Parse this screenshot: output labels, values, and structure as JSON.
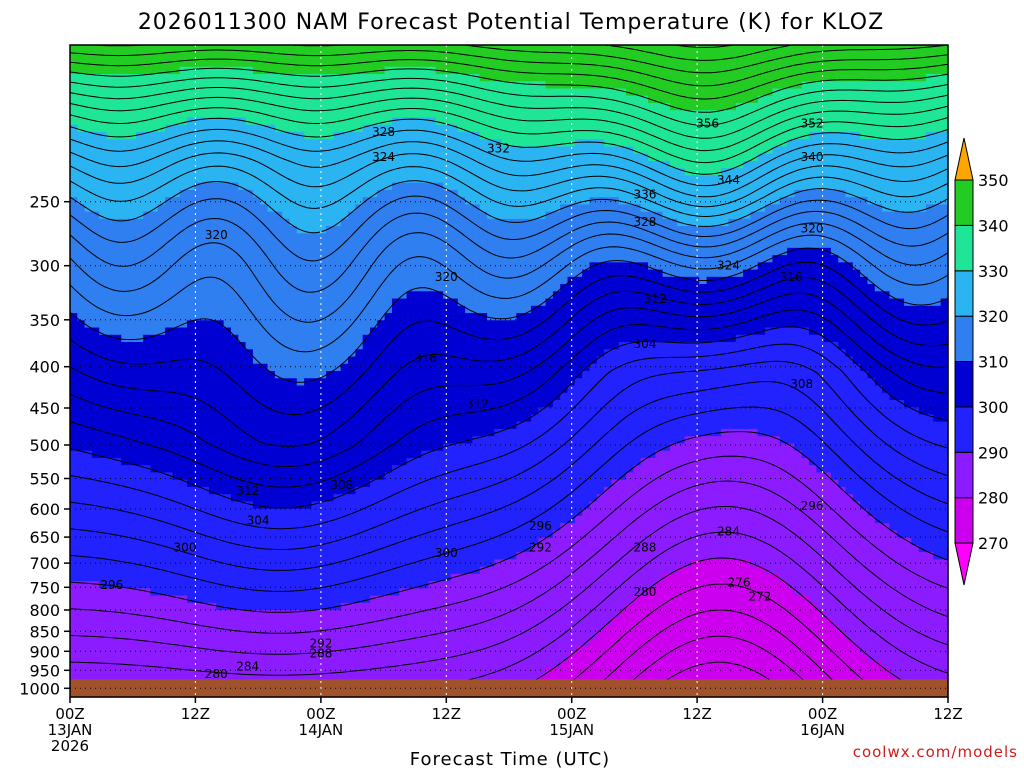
{
  "chart_data": {
    "type": "contour",
    "title": "2026011300 NAM Forecast Potential Temperature (K) for KLOZ",
    "xlabel": "Forecast Time (UTC)",
    "ylabel": "",
    "y_scale": "log-pressure",
    "y_inverted": true,
    "ylim": [
      1025,
      160
    ],
    "y_ticks": [
      250,
      300,
      350,
      400,
      450,
      500,
      550,
      600,
      650,
      700,
      750,
      800,
      850,
      900,
      950,
      1000
    ],
    "x_ticks": [
      {
        "hour": 0,
        "time": "00Z",
        "date": "13JAN",
        "year": "2026"
      },
      {
        "hour": 12,
        "time": "12Z",
        "date": "",
        "year": ""
      },
      {
        "hour": 24,
        "time": "00Z",
        "date": "14JAN",
        "year": ""
      },
      {
        "hour": 36,
        "time": "12Z",
        "date": "",
        "year": ""
      },
      {
        "hour": 48,
        "time": "00Z",
        "date": "15JAN",
        "year": ""
      },
      {
        "hour": 60,
        "time": "12Z",
        "date": "",
        "year": ""
      },
      {
        "hour": 72,
        "time": "00Z",
        "date": "16JAN",
        "year": ""
      },
      {
        "hour": 84,
        "time": "12Z",
        "date": "",
        "year": ""
      }
    ],
    "xlim": [
      0,
      84
    ],
    "grid": true,
    "colorbar": {
      "levels": [
        270,
        280,
        290,
        300,
        310,
        320,
        330,
        340,
        350
      ],
      "colors": [
        "#ff00ff",
        "#cc00ee",
        "#8c1cff",
        "#2222ff",
        "#0000d2",
        "#2f7ff0",
        "#2bb4f2",
        "#1ee696",
        "#22cc22",
        "#ffff33",
        "#ffa500"
      ]
    },
    "contour_interval": 2,
    "contour_labels": [
      {
        "hour": 4,
        "p": 745,
        "value": "296"
      },
      {
        "hour": 11,
        "p": 670,
        "value": "300"
      },
      {
        "hour": 17,
        "p": 570,
        "value": "312"
      },
      {
        "hour": 18,
        "p": 620,
        "value": "304"
      },
      {
        "hour": 26,
        "p": 560,
        "value": "308"
      },
      {
        "hour": 14,
        "p": 275,
        "value": "320"
      },
      {
        "hour": 30,
        "p": 205,
        "value": "328"
      },
      {
        "hour": 30,
        "p": 220,
        "value": "324"
      },
      {
        "hour": 41,
        "p": 215,
        "value": "332"
      },
      {
        "hour": 36,
        "p": 310,
        "value": "320"
      },
      {
        "hour": 34,
        "p": 390,
        "value": "316"
      },
      {
        "hour": 39,
        "p": 445,
        "value": "312"
      },
      {
        "hour": 45,
        "p": 630,
        "value": "296"
      },
      {
        "hour": 45,
        "p": 670,
        "value": "292"
      },
      {
        "hour": 36,
        "p": 680,
        "value": "300"
      },
      {
        "hour": 24,
        "p": 880,
        "value": "292"
      },
      {
        "hour": 24,
        "p": 905,
        "value": "288"
      },
      {
        "hour": 17,
        "p": 940,
        "value": "284"
      },
      {
        "hour": 14,
        "p": 960,
        "value": "280"
      },
      {
        "hour": 55,
        "p": 760,
        "value": "280"
      },
      {
        "hour": 55,
        "p": 670,
        "value": "288"
      },
      {
        "hour": 63,
        "p": 640,
        "value": "284"
      },
      {
        "hour": 64,
        "p": 740,
        "value": "276"
      },
      {
        "hour": 66,
        "p": 770,
        "value": "272"
      },
      {
        "hour": 55,
        "p": 375,
        "value": "304"
      },
      {
        "hour": 56,
        "p": 330,
        "value": "312"
      },
      {
        "hour": 70,
        "p": 420,
        "value": "308"
      },
      {
        "hour": 71,
        "p": 595,
        "value": "296"
      },
      {
        "hour": 69,
        "p": 310,
        "value": "316"
      },
      {
        "hour": 63,
        "p": 300,
        "value": "324"
      },
      {
        "hour": 71,
        "p": 270,
        "value": "320"
      },
      {
        "hour": 55,
        "p": 265,
        "value": "328"
      },
      {
        "hour": 55,
        "p": 245,
        "value": "336"
      },
      {
        "hour": 63,
        "p": 235,
        "value": "344"
      },
      {
        "hour": 71,
        "p": 220,
        "value": "340"
      },
      {
        "hour": 61,
        "p": 200,
        "value": "356"
      },
      {
        "hour": 71,
        "p": 200,
        "value": "352"
      }
    ]
  },
  "credit": "coolwx.com/models"
}
